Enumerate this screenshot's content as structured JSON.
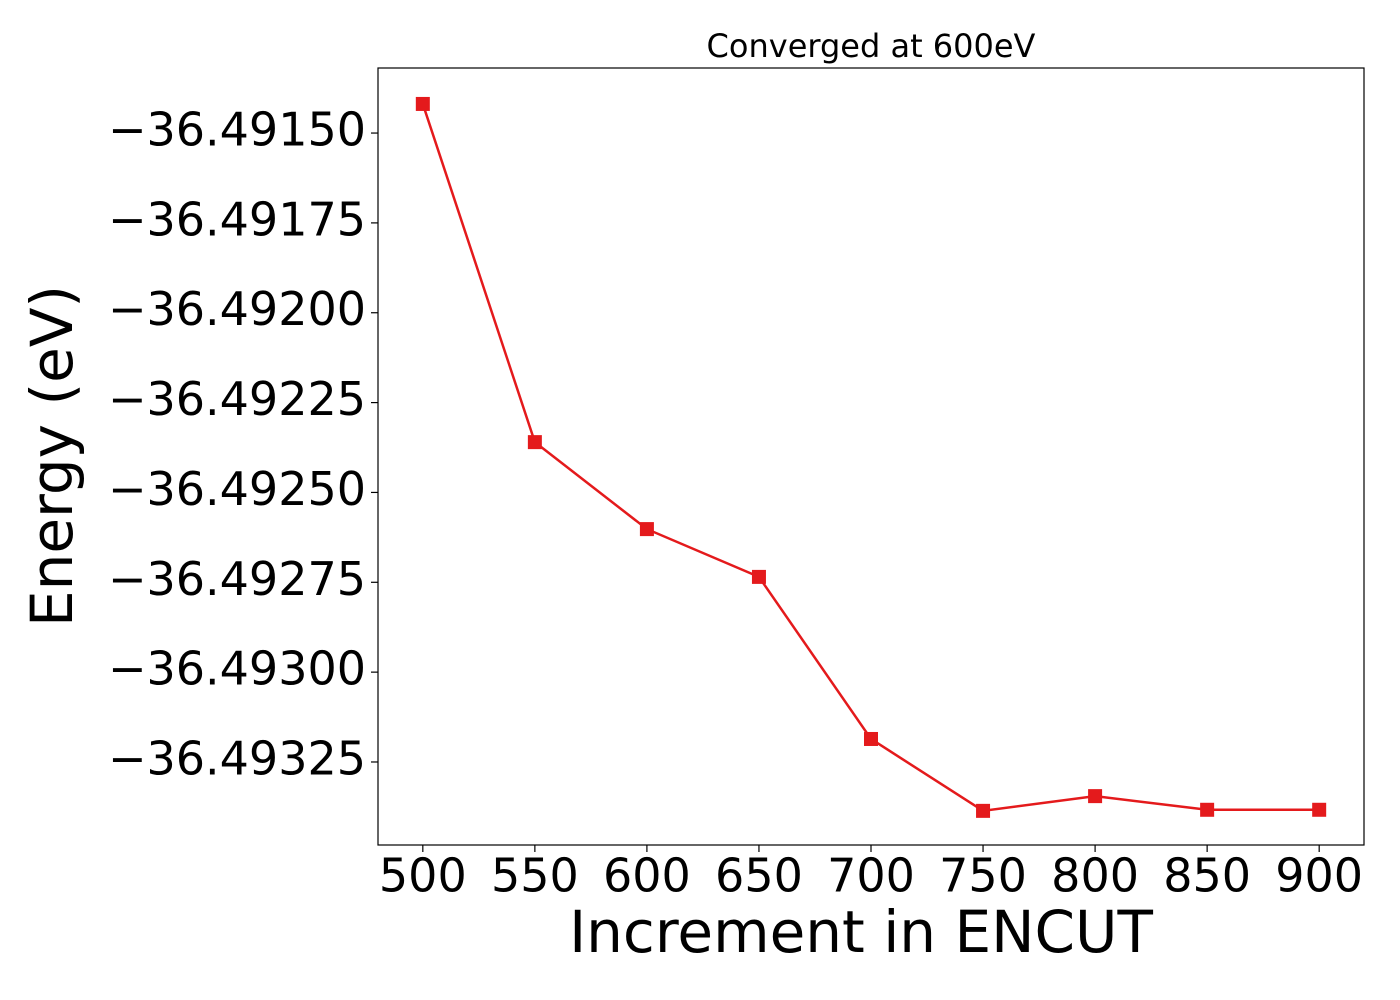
{
  "chart_data": {
    "type": "line",
    "title": "Converged at 600eV",
    "x_label": "Increment in ENCUT",
    "y_label": "Energy (eV)",
    "x": [
      500,
      550,
      600,
      650,
      700,
      750,
      800,
      850,
      900
    ],
    "series": [
      {
        "color": "#e41a1c",
        "values": [
          -36.491419,
          -36.49236,
          -36.492602,
          -36.492735,
          -36.493186,
          -36.493386,
          -36.493345,
          -36.493383,
          -36.493383
        ]
      }
    ],
    "xlim": [
      480,
      920
    ],
    "xticks": [
      500,
      550,
      600,
      650,
      700,
      750,
      800,
      850,
      900
    ],
    "ylim": [
      -36.493481,
      -36.491319
    ],
    "yticks": [
      {
        "value": -36.4915,
        "label": "−36.49150"
      },
      {
        "value": -36.49175,
        "label": "−36.49175"
      },
      {
        "value": -36.492,
        "label": "−36.49200"
      },
      {
        "value": -36.49225,
        "label": "−36.49225"
      },
      {
        "value": -36.4925,
        "label": "−36.49250"
      },
      {
        "value": -36.49275,
        "label": "−36.49275"
      },
      {
        "value": -36.493,
        "label": "−36.49300"
      },
      {
        "value": -36.49325,
        "label": "−36.49325"
      }
    ],
    "grid": false
  }
}
